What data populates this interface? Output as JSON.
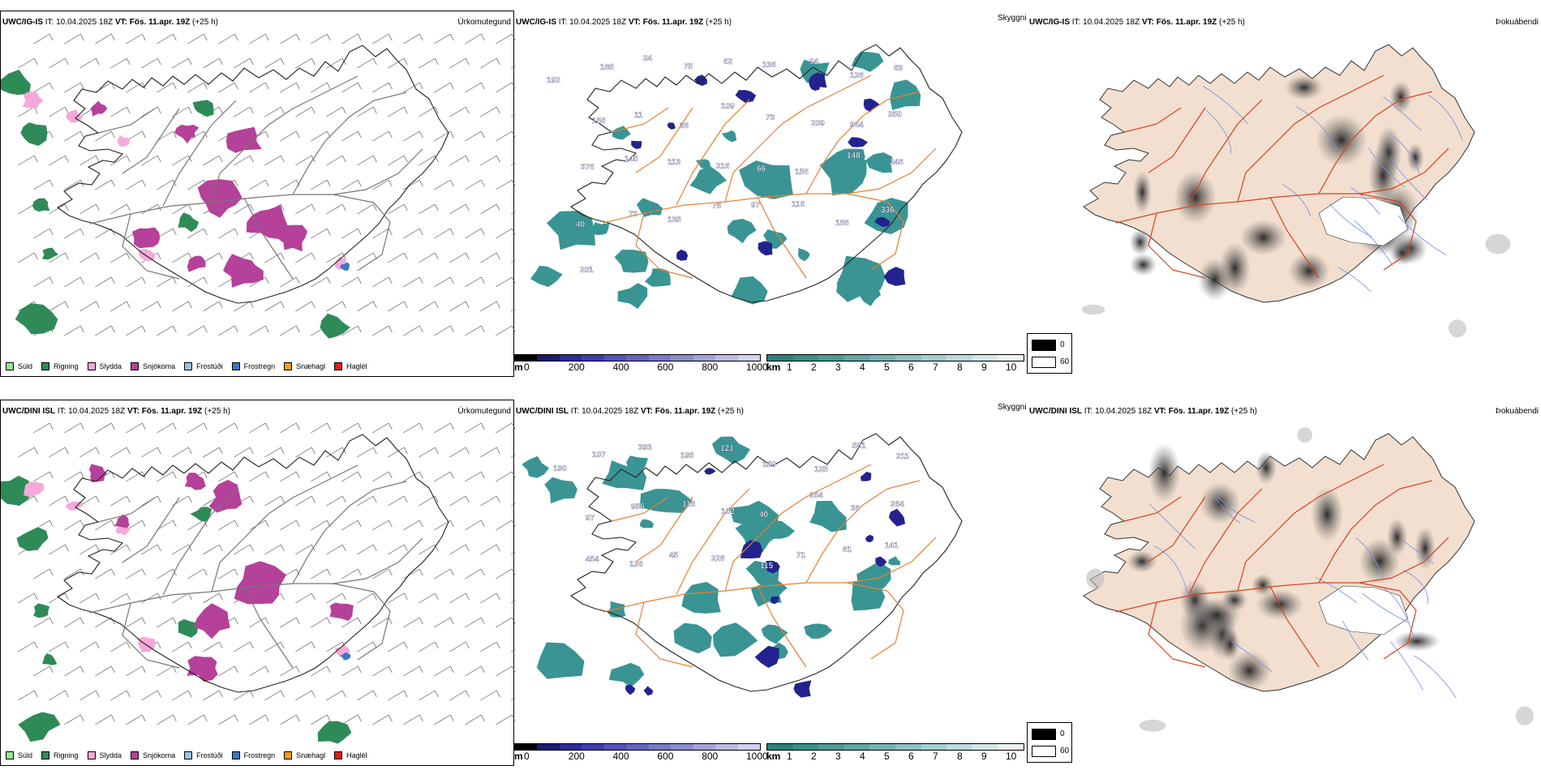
{
  "rows": [
    {
      "model": "UWC/IG-IS",
      "it": "IT: 10.04.2025 18Z",
      "vt_prefix": "VT:",
      "vt": "Fös. 11.apr. 19Z",
      "lead": "(+25 h)",
      "precip_label": "Úrkomutegund",
      "ceiling_label": "Skyggni",
      "fog_label": "Þokuábendi",
      "labels": [
        "192",
        "185",
        "24",
        "75",
        "62",
        "136",
        "94",
        "128",
        "63",
        "158",
        "11",
        "38",
        "109",
        "73",
        "209",
        "964",
        "250",
        "376",
        "145",
        "113",
        "216",
        "66",
        "158",
        "148",
        "248",
        "40",
        "73",
        "135",
        "76",
        "97",
        "116",
        "188",
        "336",
        "201"
      ]
    },
    {
      "model": "UWC/DINI ISL",
      "it": "IT: 10.04.2025 18Z",
      "vt_prefix": "VT:",
      "vt": "Fös. 11.apr. 19Z",
      "lead": "(+25 h)",
      "precip_label": "Úrkomutegund",
      "ceiling_label": "Skyggni",
      "fog_label": "Þokuábendi",
      "labels": [
        "190",
        "107",
        "393",
        "195",
        "121",
        "150",
        "125",
        "581",
        "211",
        "97",
        "956",
        "118",
        "102",
        "40",
        "264",
        "36",
        "264",
        "454",
        "126",
        "45",
        "228",
        "115",
        "71",
        "81",
        "141"
      ]
    }
  ],
  "precip_legend": [
    {
      "label": "Súld",
      "color": "#90ee90"
    },
    {
      "label": "Rigning",
      "color": "#2e8b57"
    },
    {
      "label": "Slydda",
      "color": "#f5a9d8"
    },
    {
      "label": "Snjókoma",
      "color": "#b5419a"
    },
    {
      "label": "Frostúði",
      "color": "#99c4ee"
    },
    {
      "label": "Frostregn",
      "color": "#3b78c7"
    },
    {
      "label": "Snæhagl",
      "color": "#f39c12"
    },
    {
      "label": "Haglél",
      "color": "#e01b1b"
    }
  ],
  "ceiling_bar": {
    "unit": "m",
    "ticks": [
      "0",
      "200",
      "400",
      "600",
      "800",
      "1000"
    ],
    "colors": [
      "#000000",
      "#1a1a6e",
      "#2b2b9a",
      "#3d3db0",
      "#5151b8",
      "#6464bc",
      "#7979c4",
      "#8c8ccc",
      "#a3a3d8",
      "#babae3",
      "#d2d2ee"
    ]
  },
  "visibility_bar": {
    "unit": "km",
    "ticks": [
      "1",
      "2",
      "3",
      "4",
      "5",
      "6",
      "7",
      "8",
      "9",
      "10"
    ],
    "colors": [
      "#2f7f7f",
      "#3d8c8c",
      "#4e9999",
      "#62a6a6",
      "#77b3b3",
      "#8dc0c0",
      "#a4cdcd",
      "#bcdada",
      "#d4e7e7",
      "#ebf3f3"
    ]
  },
  "cloud_key": {
    "values": [
      "0",
      "60"
    ]
  },
  "colors": {
    "snow": "#b5419a",
    "rain": "#2e8b57",
    "sleet": "#f5a9d8",
    "freezing": "#3b78c7",
    "ceiling_teal": "#3a9494",
    "ceiling_navy": "#23238f",
    "roads_orange": "#e58033",
    "roads_red": "#d64320",
    "land_tan": "#f2dfcf",
    "rivers_blue": "#8095e6"
  }
}
